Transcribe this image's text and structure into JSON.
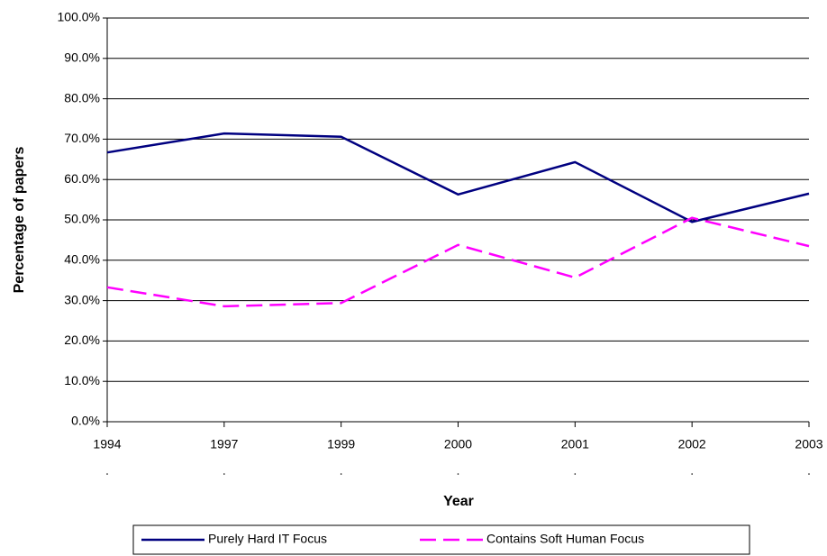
{
  "chart_data": {
    "type": "line",
    "x_label": "Year",
    "y_label": "Percentage of papers",
    "categories": [
      "1994",
      "1997",
      "1999",
      "2000",
      "2001",
      "2002",
      "2003"
    ],
    "series": [
      {
        "name": "Purely Hard IT Focus",
        "color": "#000080",
        "dash": "solid",
        "values": [
          66.7,
          71.4,
          70.6,
          56.3,
          64.3,
          49.5,
          56.5
        ]
      },
      {
        "name": "Contains Soft Human Focus",
        "color": "#ff00ff",
        "dash": "dashed",
        "values": [
          33.3,
          28.6,
          29.4,
          43.8,
          35.7,
          50.5,
          43.5
        ]
      }
    ],
    "ylim": [
      0,
      100
    ],
    "yticks": [
      {
        "value": 0,
        "label": "0.0%"
      },
      {
        "value": 10,
        "label": "10.0%"
      },
      {
        "value": 20,
        "label": "20.0%"
      },
      {
        "value": 30,
        "label": "30.0%"
      },
      {
        "value": 40,
        "label": "40.0%"
      },
      {
        "value": 50,
        "label": "50.0%"
      },
      {
        "value": 60,
        "label": "60.0%"
      },
      {
        "value": 70,
        "label": "70.0%"
      },
      {
        "value": 80,
        "label": "80.0%"
      },
      {
        "value": 90,
        "label": "90.0%"
      },
      {
        "value": 100,
        "label": "100.0%"
      }
    ],
    "grid": true,
    "legend": "bottom"
  }
}
